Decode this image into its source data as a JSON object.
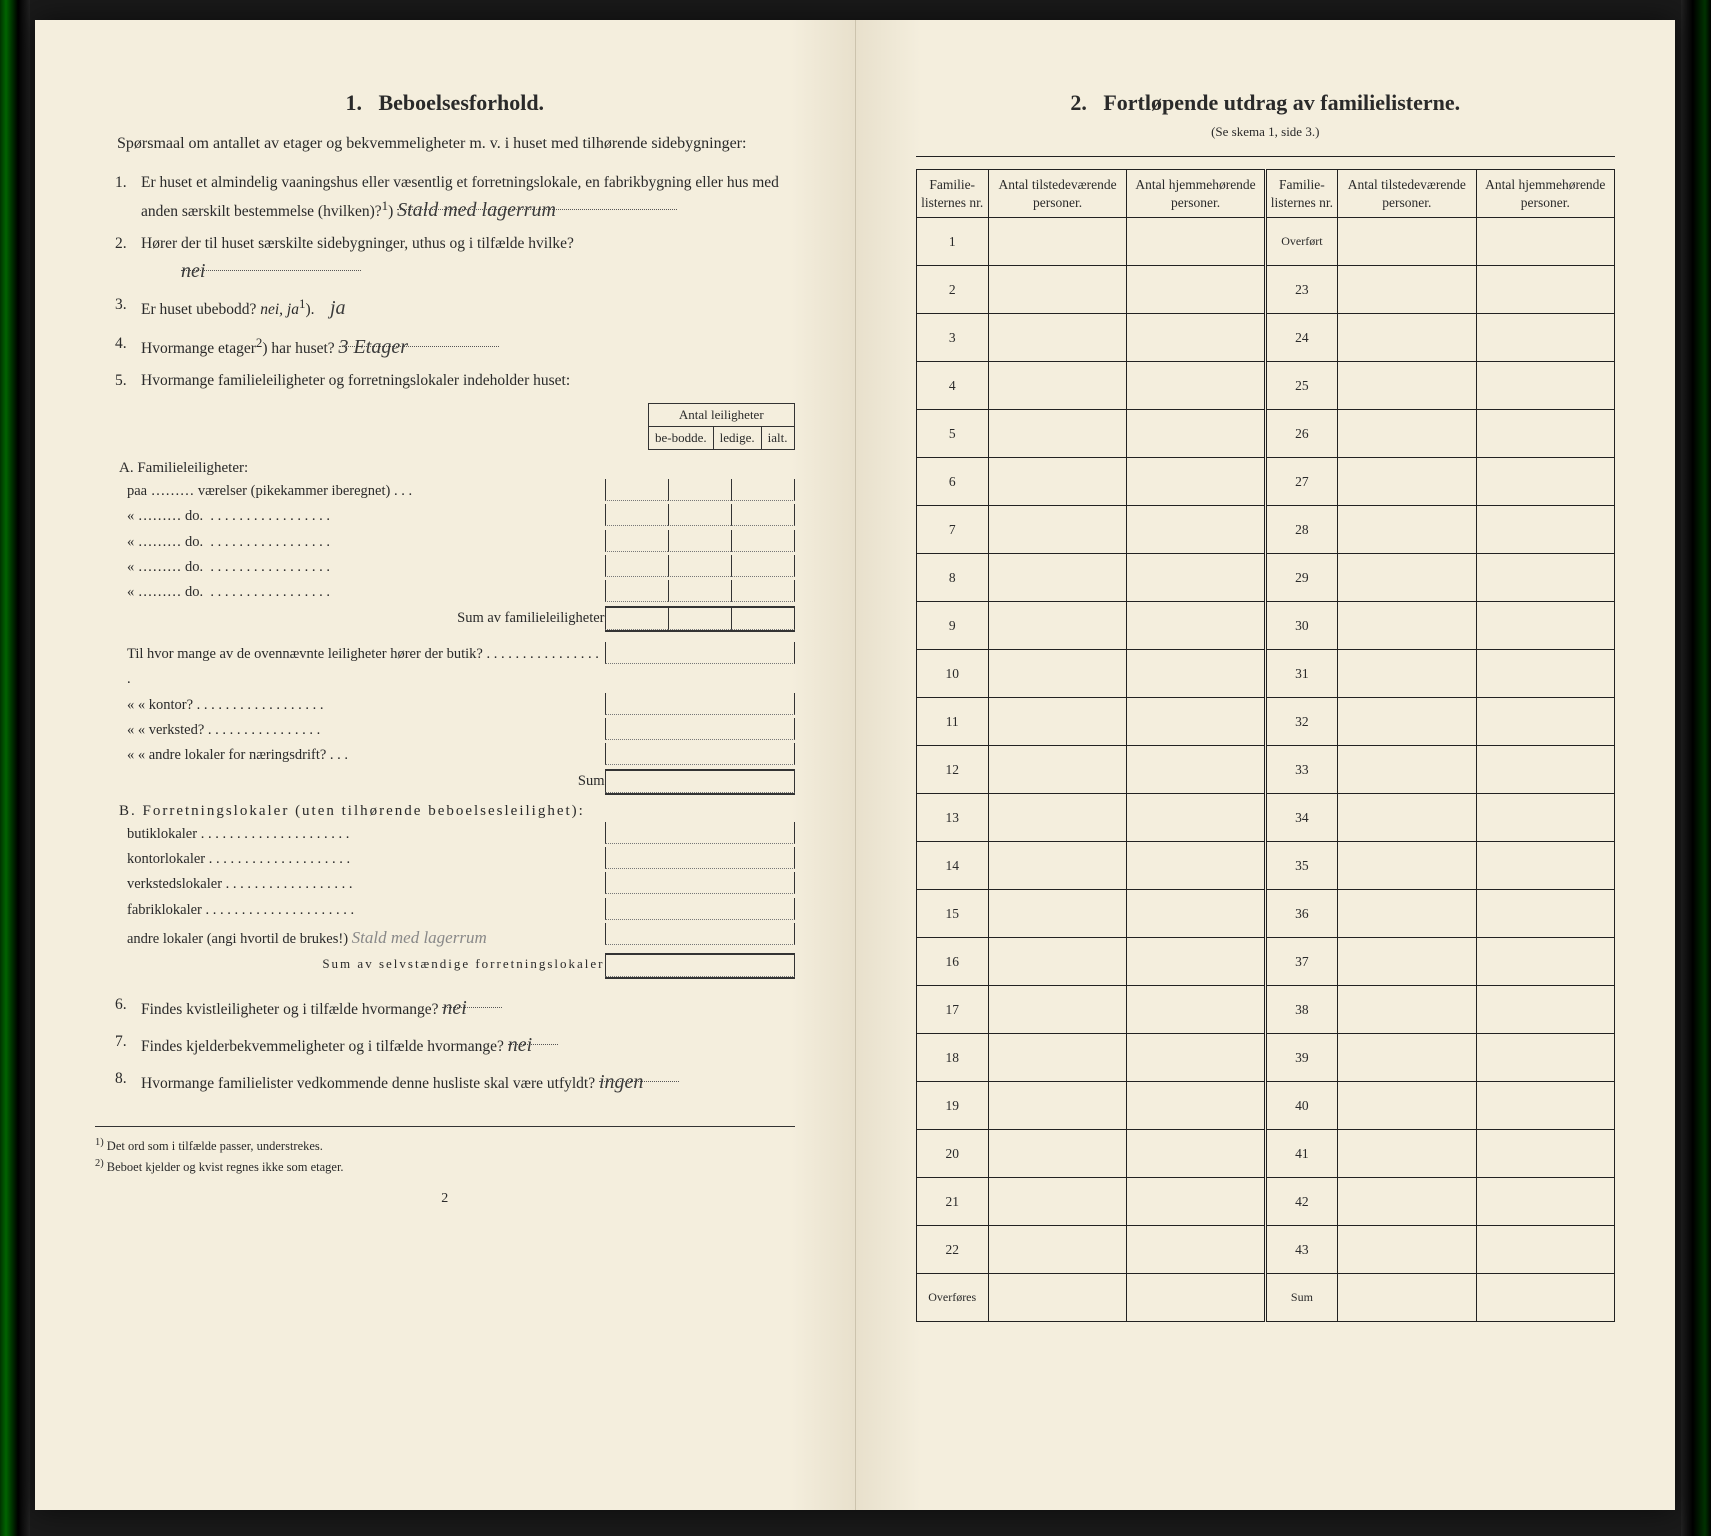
{
  "left": {
    "section_number": "1.",
    "section_title": "Beboelsesforhold.",
    "intro": "Spørsmaal om antallet av etager og bekvemmeligheter m. v. i huset med tilhørende sidebygninger:",
    "q1_num": "1.",
    "q1_text_a": "Er huset et almindelig vaaningshus eller væsentlig et forretningslokale, en fabrikbygning eller hus med anden særskilt bestemmelse (hvilken)?",
    "q1_sup": "1",
    "q1_answer": "Stald med lagerrum",
    "q2_num": "2.",
    "q2_text": "Hører der til huset særskilte sidebygninger, uthus og i tilfælde hvilke?",
    "q2_answer": "nei",
    "q3_num": "3.",
    "q3_text": "Er huset ubebodd?",
    "q3_options": "nei, ja",
    "q3_sup": "1",
    "q3_answer": "ja",
    "q4_num": "4.",
    "q4_text": "Hvormange etager",
    "q4_sup": "2",
    "q4_text_b": "har huset?",
    "q4_answer": "3 Etager",
    "q5_num": "5.",
    "q5_text": "Hvormange familieleiligheter og forretningslokaler indeholder huset:",
    "units_header": "Antal leiligheter",
    "col_bebodde": "be-bodde.",
    "col_ledige": "ledige.",
    "col_ialt": "ialt.",
    "secA_title": "A. Familieleiligheter:",
    "secA_row1": "paa ……… værelser (pikekammer iberegnet) . . .",
    "secA_do": "do.",
    "secA_sum": "Sum av familieleiligheter",
    "ovenn_text": "Til hvor mange av de ovennævnte leiligheter hører der butik? . . . . . . . . . . . . . . . . .",
    "ovenn_kontor": "«    «   kontor? . . . . . . . . . . . . . . . . . .",
    "ovenn_verksted": "«    «   verksted? . . . . . . . . . . . . . . . .",
    "ovenn_andre": "«    «   andre lokaler for næringsdrift? . . .",
    "ovenn_sum": "Sum",
    "secB_title": "B. Forretningslokaler (uten tilhørende beboelsesleilighet):",
    "secB_butik": "butiklokaler . . . . . . . . . . . . . . . . . . . . .",
    "secB_kontor": "kontorlokaler . . . . . . . . . . . . . . . . . . . .",
    "secB_verksted": "verkstedslokaler . . . . . . . . . . . . . . . . . .",
    "secB_fabrik": "fabriklokaler . . . . . . . . . . . . . . . . . . . . .",
    "secB_andre": "andre lokaler (angi hvortil de brukes!)",
    "secB_andre_answer": "Stald med lagerrum",
    "secB_sum": "Sum av selvstændige forretningslokaler",
    "q6_num": "6.",
    "q6_text": "Findes kvistleiligheter og i tilfælde hvormange?",
    "q6_answer": "nei",
    "q7_num": "7.",
    "q7_text": "Findes kjelderbekvemmeligheter og i tilfælde hvormange?",
    "q7_answer": "nei",
    "q8_num": "8.",
    "q8_text": "Hvormange familielister vedkommende denne husliste skal være utfyldt?",
    "q8_answer": "ingen",
    "footnote1_mark": "1)",
    "footnote1": "Det ord som i tilfælde passer, understrekes.",
    "footnote2_mark": "2)",
    "footnote2": "Beboet kjelder og kvist regnes ikke som etager.",
    "page_num": "2"
  },
  "right": {
    "section_number": "2.",
    "section_title": "Fortløpende utdrag av familielisterne.",
    "subtitle": "(Se skema 1, side 3.)",
    "col_familie_nr": "Familie-listernes nr.",
    "col_tilstede": "Antal tilstedeværende personer.",
    "col_hjemme": "Antal hjemmehørende personer.",
    "left_rows": [
      "1",
      "2",
      "3",
      "4",
      "5",
      "6",
      "7",
      "8",
      "9",
      "10",
      "11",
      "12",
      "13",
      "14",
      "15",
      "16",
      "17",
      "18",
      "19",
      "20",
      "21",
      "22"
    ],
    "left_footer": "Overføres",
    "right_first": "Overført",
    "right_rows": [
      "23",
      "24",
      "25",
      "26",
      "27",
      "28",
      "29",
      "30",
      "31",
      "32",
      "33",
      "34",
      "35",
      "36",
      "37",
      "38",
      "39",
      "40",
      "41",
      "42",
      "43"
    ],
    "right_footer": "Sum"
  },
  "colors": {
    "paper": "#f4eedd",
    "ink": "#2a2a2a",
    "handwriting": "#3a3a3a"
  }
}
